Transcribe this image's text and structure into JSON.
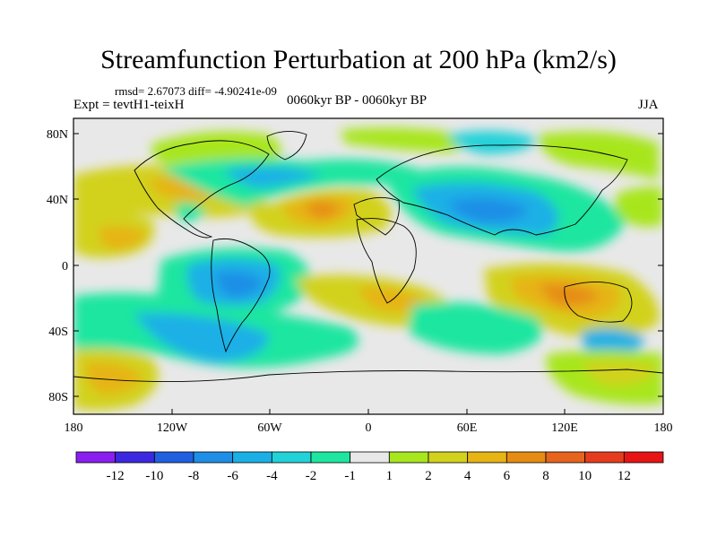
{
  "header": {
    "title": "Streamfunction Perturbation at 200 hPa (km2/s)",
    "stats": "rmsd= 2.67073 diff= -4.90241e-09",
    "experiment": "Expt = tevtH1-teixH",
    "period": "0060kyr BP - 0060kyr BP",
    "season": "JJA"
  },
  "map": {
    "projection": "cylindrical equidistant",
    "lon_range": [
      -180,
      180
    ],
    "lat_range": [
      -90,
      90
    ],
    "lat_labels": [
      "80N",
      "40N",
      "0",
      "40S",
      "80S"
    ],
    "lon_labels": [
      "180",
      "120W",
      "60W",
      "0",
      "60E",
      "120E",
      "180"
    ]
  },
  "legend": {
    "labels": [
      "-12",
      "-10",
      "-8",
      "-6",
      "-4",
      "-2",
      "-1",
      "1",
      "2",
      "4",
      "6",
      "8",
      "10",
      "12"
    ],
    "colors": [
      "#8a1ef0",
      "#3c28e0",
      "#2060e0",
      "#1e8ee6",
      "#1ab0e6",
      "#22d2d8",
      "#1ee6a0",
      "#e8e8e8",
      "#a8e61e",
      "#d2d21e",
      "#e6b414",
      "#e68c14",
      "#e6641e",
      "#e63c1e",
      "#e61414"
    ]
  }
}
